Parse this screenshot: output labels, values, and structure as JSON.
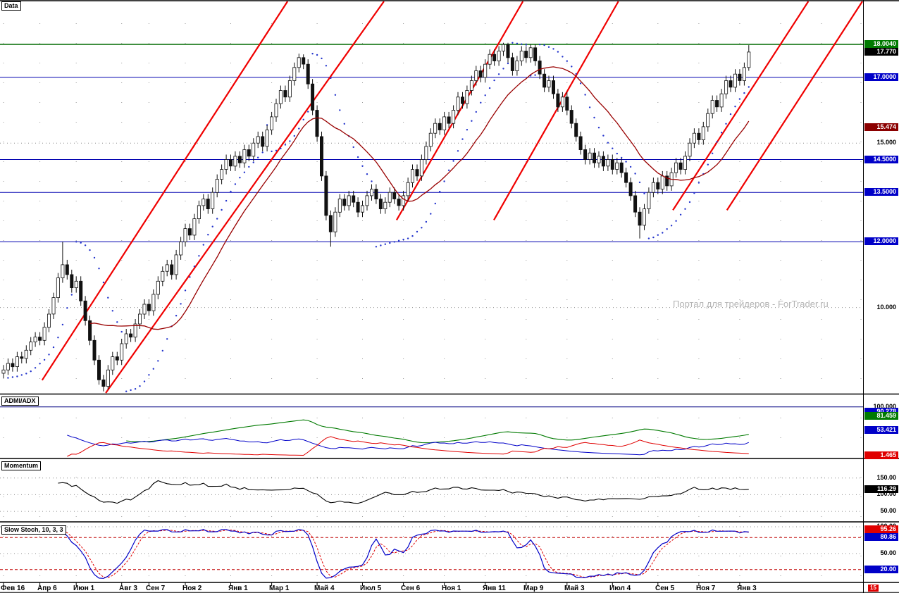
{
  "watermark": "Портал для трейдеров - ForTrader.ru",
  "corner_badge": {
    "text": "15",
    "bg": "#e00000"
  },
  "panels": {
    "main": {
      "label": "Data",
      "ylim": [
        7.4,
        19.31
      ],
      "grid_values": [
        10,
        15
      ],
      "hlines": [
        {
          "v": 18.004,
          "color": "#006A00",
          "w": 1.6
        },
        {
          "v": 17.0,
          "color": "#0000B0",
          "w": 1
        },
        {
          "v": 14.5,
          "color": "#0000B0",
          "w": 1
        },
        {
          "v": 13.5,
          "color": "#0000B0",
          "w": 1
        },
        {
          "v": 12.0,
          "color": "#0000B0",
          "w": 1
        }
      ],
      "axis_labels": [
        {
          "v": 18.004,
          "text": "18.0040",
          "bg": "#007A00"
        },
        {
          "v": 17.77,
          "text": "17.770",
          "bg": "#000000"
        },
        {
          "v": 17.0,
          "text": "17.0000",
          "bg": "#0000C8"
        },
        {
          "v": 15.474,
          "text": "15.474",
          "bg": "#8B0000"
        },
        {
          "v": 15.0,
          "text": "15.000"
        },
        {
          "v": 14.5,
          "text": "14.5000",
          "bg": "#0000C8"
        },
        {
          "v": 13.5,
          "text": "13.5000",
          "bg": "#0000C8"
        },
        {
          "v": 12.0,
          "text": "12.0000",
          "bg": "#0000C8"
        },
        {
          "v": 10.0,
          "text": "10.000"
        }
      ]
    },
    "adx": {
      "label": "ADMI/ADX",
      "ylim": [
        -1.4,
        122.5
      ],
      "grid_values": [],
      "hlines": [
        {
          "v": 100,
          "color": "#000080",
          "w": 1
        }
      ],
      "lines": {
        "adx": "#007A00",
        "plus_di": "#0000C8",
        "minus_di": "#E00000"
      },
      "axis_labels": [
        {
          "v": 100,
          "text": "100.000"
        },
        {
          "v": 90.278,
          "text": "90.278",
          "bg": "#0000C8"
        },
        {
          "v": 81.459,
          "text": "81.459",
          "bg": "#007A00"
        },
        {
          "v": 53.421,
          "text": "53.421",
          "bg": "#0000C8"
        },
        {
          "v": 1.465,
          "text": "1.465",
          "bg": "#E00000"
        }
      ]
    },
    "momentum": {
      "label": "Momentum",
      "ylim": [
        22.9,
        202.1
      ],
      "grid_values": [
        50,
        100,
        150
      ],
      "line_color": "#000000",
      "axis_labels": [
        {
          "v": 150,
          "text": "150.00"
        },
        {
          "v": 116.29,
          "text": "116.29",
          "bg": "#000000"
        },
        {
          "v": 100,
          "text": "100.00"
        },
        {
          "v": 50,
          "text": "50.00"
        }
      ]
    },
    "stoch": {
      "label": "Slow Stoch, 10, 3, 3",
      "ylim": [
        -1.3,
        103.9
      ],
      "grid_values": [
        50,
        100
      ],
      "levels": [
        {
          "v": 80,
          "color": "#C00000"
        },
        {
          "v": 20,
          "color": "#C00000"
        }
      ],
      "lines": {
        "k": "#0000C8",
        "d": "#E00000"
      },
      "axis_labels": [
        {
          "v": 100,
          "text": "100.00"
        },
        {
          "v": 95.26,
          "text": "95.26",
          "bg": "#E00000"
        },
        {
          "v": 80.86,
          "text": "80.86",
          "bg": "#0000C8"
        },
        {
          "v": 50,
          "text": "50.00"
        },
        {
          "v": 20,
          "text": "20.00",
          "bg": "#0000C8"
        }
      ]
    }
  },
  "chart_data": {
    "type": "candlestick",
    "timeframe": "weekly",
    "x_ticks": [
      {
        "label": "Фев 16",
        "week": 0
      },
      {
        "label": "Апр 6",
        "week": 8
      },
      {
        "label": "Июн 1",
        "week": 16
      },
      {
        "label": "Авг 3",
        "week": 26
      },
      {
        "label": "Сен 7",
        "week": 32
      },
      {
        "label": "Ноя 2",
        "week": 40
      },
      {
        "label": "Янв 1",
        "week": 50
      },
      {
        "label": "Мар 1",
        "week": 59
      },
      {
        "label": "Май 4",
        "week": 69
      },
      {
        "label": "Июл 5",
        "week": 79
      },
      {
        "label": "Сен 6",
        "week": 88
      },
      {
        "label": "Ноя 1",
        "week": 97
      },
      {
        "label": "Янв 11",
        "week": 106
      },
      {
        "label": "Мар 9",
        "week": 115
      },
      {
        "label": "Май 3",
        "week": 124
      },
      {
        "label": "Июл 4",
        "week": 134
      },
      {
        "label": "Сен 5",
        "week": 144
      },
      {
        "label": "Ноя 7",
        "week": 153
      },
      {
        "label": "Янв 3",
        "week": 162
      }
    ],
    "style": {
      "trend_color": "#F00000",
      "psar_color": "#2233CC",
      "ma_color": "#990000",
      "candle_up": "#FFFFFF",
      "candle_down": "#111111",
      "candle_stroke": "#111111"
    },
    "indicators": {
      "sma": {
        "period": 20
      },
      "psar": {
        "step": 0.02,
        "max": 0.2
      },
      "adx": {
        "period": 14
      },
      "momentum": {
        "period": 12
      },
      "stoch": {
        "k_period": 10,
        "slowing": 3,
        "d_period": 3
      }
    },
    "trendlines": [
      {
        "w1": 8.5,
        "p1": 7.79,
        "w2": 62.5,
        "p2": 19.31
      },
      {
        "w1": 22.5,
        "p1": 7.4,
        "w2": 83.7,
        "p2": 19.31
      },
      {
        "w1": 86.5,
        "p1": 12.66,
        "w2": 114.3,
        "p2": 19.31
      },
      {
        "w1": 107.9,
        "p1": 12.66,
        "w2": 135.3,
        "p2": 19.31
      },
      {
        "w1": 147.3,
        "p1": 12.96,
        "w2": 177.1,
        "p2": 19.31
      },
      {
        "w1": 159.2,
        "p1": 12.96,
        "w2": 189.0,
        "p2": 19.31
      }
    ],
    "candles": {
      "o": [
        8.0,
        8.1,
        8.3,
        8.2,
        8.5,
        8.45,
        8.7,
        8.95,
        9.1,
        9.0,
        9.4,
        9.8,
        10.3,
        10.9,
        11.3,
        11.0,
        10.6,
        10.8,
        10.2,
        9.6,
        9.0,
        8.4,
        7.8,
        7.6,
        8.1,
        8.5,
        8.4,
        8.9,
        9.2,
        9.1,
        9.5,
        9.8,
        10.1,
        9.9,
        10.4,
        10.8,
        11.1,
        11.3,
        11.0,
        11.6,
        12.0,
        12.4,
        12.2,
        12.7,
        13.1,
        13.3,
        13.0,
        13.5,
        13.9,
        14.2,
        14.5,
        14.3,
        14.6,
        14.4,
        14.8,
        14.6,
        15.0,
        15.2,
        14.9,
        15.4,
        15.8,
        16.2,
        16.6,
        16.4,
        16.9,
        17.3,
        17.6,
        17.4,
        16.8,
        16.0,
        15.2,
        14.0,
        12.8,
        12.3,
        12.9,
        13.3,
        13.1,
        13.4,
        13.2,
        12.9,
        13.1,
        13.4,
        13.6,
        13.3,
        13.0,
        13.2,
        13.5,
        13.3,
        13.1,
        13.4,
        13.8,
        14.2,
        14.0,
        14.5,
        14.9,
        15.3,
        15.6,
        15.4,
        15.8,
        15.6,
        16.0,
        16.4,
        16.2,
        16.6,
        16.9,
        17.2,
        17.0,
        17.4,
        17.7,
        17.5,
        17.8,
        18.0,
        17.6,
        17.2,
        17.5,
        17.8,
        17.6,
        17.9,
        17.5,
        17.1,
        16.7,
        16.9,
        16.5,
        16.1,
        16.4,
        16.0,
        15.6,
        15.2,
        14.8,
        14.5,
        14.7,
        14.4,
        14.6,
        14.3,
        14.5,
        14.2,
        14.4,
        14.1,
        13.8,
        13.4,
        12.9,
        12.5,
        13.0,
        13.5,
        13.8,
        13.6,
        14.0,
        13.7,
        14.1,
        14.4,
        14.2,
        14.6,
        15.0,
        15.3,
        15.1,
        15.5,
        15.9,
        16.3,
        16.1,
        16.5,
        16.9,
        16.7,
        17.1,
        16.9,
        17.3
      ],
      "h": [
        8.25,
        8.45,
        8.45,
        8.65,
        8.65,
        8.85,
        9.1,
        9.25,
        9.25,
        9.55,
        9.95,
        10.45,
        11.05,
        12.0,
        11.45,
        11.15,
        10.95,
        10.95,
        10.35,
        9.75,
        9.15,
        8.55,
        7.95,
        8.25,
        8.65,
        8.65,
        9.05,
        9.35,
        9.35,
        9.65,
        9.95,
        10.25,
        10.25,
        10.55,
        10.95,
        11.25,
        11.45,
        11.45,
        11.75,
        12.15,
        12.55,
        12.55,
        12.85,
        13.25,
        13.45,
        13.45,
        13.65,
        14.05,
        14.35,
        14.65,
        14.65,
        14.75,
        14.75,
        14.95,
        14.95,
        15.15,
        15.35,
        15.35,
        15.55,
        15.95,
        16.35,
        16.75,
        16.75,
        17.05,
        17.45,
        17.72,
        17.7,
        17.55,
        16.95,
        16.15,
        15.35,
        14.15,
        12.95,
        13.05,
        13.45,
        13.45,
        13.55,
        13.55,
        13.35,
        13.25,
        13.55,
        13.75,
        13.75,
        13.45,
        13.35,
        13.65,
        13.65,
        13.45,
        13.55,
        13.95,
        14.35,
        14.35,
        14.65,
        15.05,
        15.45,
        15.75,
        15.75,
        15.95,
        15.95,
        16.15,
        16.55,
        16.55,
        16.75,
        17.05,
        17.35,
        17.35,
        17.55,
        17.85,
        17.85,
        17.95,
        18.05,
        18.05,
        17.75,
        17.65,
        17.95,
        17.95,
        18.0,
        18.0,
        17.65,
        17.25,
        17.05,
        17.05,
        16.65,
        16.55,
        16.55,
        16.15,
        15.75,
        15.35,
        14.95,
        14.85,
        14.85,
        14.75,
        14.75,
        14.65,
        14.65,
        14.55,
        14.55,
        14.25,
        13.95,
        13.55,
        13.05,
        13.15,
        13.65,
        13.95,
        13.95,
        14.15,
        14.15,
        14.25,
        14.55,
        14.55,
        14.75,
        15.15,
        15.45,
        15.45,
        15.65,
        16.05,
        16.45,
        16.45,
        16.65,
        17.05,
        17.05,
        17.25,
        17.25,
        17.45,
        17.98
      ],
      "l": [
        7.85,
        7.95,
        8.05,
        8.05,
        8.3,
        8.3,
        8.55,
        8.8,
        8.85,
        8.85,
        9.25,
        9.65,
        10.15,
        10.75,
        10.85,
        10.45,
        10.45,
        10.05,
        9.45,
        8.85,
        8.25,
        7.65,
        7.45,
        7.5,
        7.95,
        8.25,
        8.25,
        8.75,
        8.95,
        8.95,
        9.35,
        9.65,
        9.75,
        9.75,
        10.25,
        10.65,
        10.95,
        10.85,
        10.85,
        11.45,
        11.85,
        12.05,
        12.05,
        12.55,
        12.95,
        12.85,
        12.85,
        13.35,
        13.75,
        14.05,
        14.15,
        14.15,
        14.25,
        14.25,
        14.45,
        14.45,
        14.85,
        14.75,
        14.75,
        15.25,
        15.65,
        16.05,
        16.25,
        16.25,
        16.75,
        17.15,
        17.25,
        16.65,
        15.85,
        15.05,
        13.85,
        12.65,
        11.85,
        12.15,
        12.75,
        12.95,
        12.95,
        13.05,
        12.75,
        12.75,
        12.95,
        13.25,
        13.15,
        12.85,
        12.85,
        13.05,
        13.15,
        12.95,
        12.95,
        13.25,
        13.65,
        13.85,
        13.85,
        14.35,
        14.75,
        15.15,
        15.25,
        15.25,
        15.45,
        15.45,
        15.85,
        16.05,
        16.05,
        16.45,
        16.75,
        16.85,
        16.85,
        17.25,
        17.35,
        17.35,
        17.65,
        17.45,
        17.05,
        17.05,
        17.35,
        17.45,
        17.45,
        17.35,
        16.95,
        16.55,
        16.55,
        16.35,
        15.95,
        15.95,
        15.85,
        15.45,
        15.05,
        14.65,
        14.35,
        14.35,
        14.25,
        14.25,
        14.15,
        14.15,
        14.05,
        14.05,
        13.95,
        13.65,
        13.25,
        12.75,
        12.1,
        12.35,
        12.85,
        13.35,
        13.45,
        13.45,
        13.55,
        13.55,
        13.95,
        14.05,
        14.05,
        14.45,
        14.85,
        14.95,
        14.95,
        15.35,
        15.75,
        15.95,
        15.95,
        16.35,
        16.55,
        16.55,
        16.75,
        16.75,
        17.2
      ],
      "c": [
        8.1,
        8.3,
        8.2,
        8.5,
        8.45,
        8.7,
        8.95,
        9.1,
        9.0,
        9.4,
        9.8,
        10.3,
        10.9,
        11.3,
        11.0,
        10.6,
        10.8,
        10.2,
        9.6,
        9.0,
        8.4,
        7.8,
        7.6,
        8.1,
        8.5,
        8.4,
        8.9,
        9.2,
        9.1,
        9.5,
        9.8,
        10.1,
        9.9,
        10.4,
        10.8,
        11.1,
        11.3,
        11.0,
        11.6,
        12.0,
        12.4,
        12.2,
        12.7,
        13.1,
        13.3,
        13.0,
        13.5,
        13.9,
        14.2,
        14.5,
        14.3,
        14.6,
        14.4,
        14.8,
        14.6,
        15.0,
        15.2,
        14.9,
        15.4,
        15.8,
        16.2,
        16.6,
        16.4,
        16.9,
        17.3,
        17.6,
        17.4,
        16.8,
        16.0,
        15.2,
        14.0,
        12.8,
        12.3,
        12.9,
        13.3,
        13.1,
        13.4,
        13.2,
        12.9,
        13.1,
        13.4,
        13.6,
        13.3,
        13.0,
        13.2,
        13.5,
        13.3,
        13.1,
        13.4,
        13.8,
        14.2,
        14.0,
        14.5,
        14.9,
        15.3,
        15.6,
        15.4,
        15.8,
        15.6,
        16.0,
        16.4,
        16.2,
        16.6,
        16.9,
        17.2,
        17.0,
        17.4,
        17.7,
        17.5,
        17.8,
        18.0,
        17.6,
        17.2,
        17.5,
        17.8,
        17.6,
        17.9,
        17.5,
        17.1,
        16.7,
        16.9,
        16.5,
        16.1,
        16.4,
        16.0,
        15.6,
        15.2,
        14.8,
        14.5,
        14.7,
        14.4,
        14.6,
        14.3,
        14.5,
        14.2,
        14.4,
        14.1,
        13.8,
        13.4,
        12.9,
        12.5,
        13.0,
        13.5,
        13.8,
        13.6,
        14.0,
        13.7,
        14.1,
        14.4,
        14.2,
        14.6,
        15.0,
        15.3,
        15.1,
        15.5,
        15.9,
        16.3,
        16.1,
        16.5,
        16.9,
        16.7,
        17.1,
        16.9,
        17.3,
        17.77
      ]
    }
  }
}
